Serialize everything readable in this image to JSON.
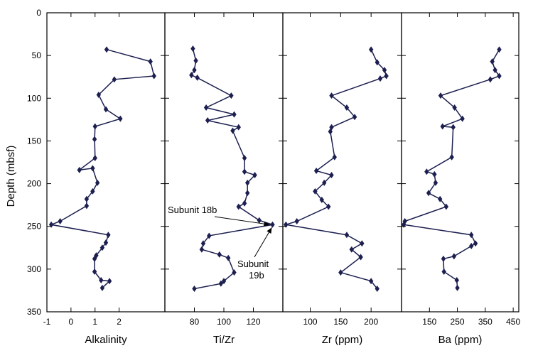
{
  "chart_data": {
    "type": "line",
    "depth_axis": {
      "label": "Depth (mbsf)",
      "range": [
        0,
        350
      ],
      "inverted": true,
      "ticks": [
        "0",
        "50",
        "100",
        "150",
        "200",
        "250",
        "300",
        "350"
      ]
    },
    "panels": [
      {
        "xlabel": "Alkalinity",
        "xlim": [
          -1,
          3.9
        ],
        "xticks": [
          -1,
          0,
          1,
          2
        ],
        "xtick_labels": [
          "-1",
          "0",
          "1",
          "2"
        ],
        "points": [
          {
            "x": 1.48,
            "depth": 43
          },
          {
            "x": 3.3,
            "depth": 57
          },
          {
            "x": 3.45,
            "depth": 74
          },
          {
            "x": 1.8,
            "depth": 78
          },
          {
            "x": 1.15,
            "depth": 96
          },
          {
            "x": 1.45,
            "depth": 113
          },
          {
            "x": 2.05,
            "depth": 124
          },
          {
            "x": 1.0,
            "depth": 133
          },
          {
            "x": 0.98,
            "depth": 148
          },
          {
            "x": 1.0,
            "depth": 170
          },
          {
            "x": 0.35,
            "depth": 184
          },
          {
            "x": 0.9,
            "depth": 182
          },
          {
            "x": 1.1,
            "depth": 199
          },
          {
            "x": 0.9,
            "depth": 209
          },
          {
            "x": 0.65,
            "depth": 218
          },
          {
            "x": 0.65,
            "depth": 226
          },
          {
            "x": -0.45,
            "depth": 244
          },
          {
            "x": -0.82,
            "depth": 248
          },
          {
            "x": 1.55,
            "depth": 260
          },
          {
            "x": 1.45,
            "depth": 269
          },
          {
            "x": 1.3,
            "depth": 275
          },
          {
            "x": 1.05,
            "depth": 284
          },
          {
            "x": 0.98,
            "depth": 288
          },
          {
            "x": 0.98,
            "depth": 303
          },
          {
            "x": 1.25,
            "depth": 313
          },
          {
            "x": 1.6,
            "depth": 314
          },
          {
            "x": 1.3,
            "depth": 322
          }
        ]
      },
      {
        "xlabel": "Ti/Zr",
        "xlim": [
          60,
          140
        ],
        "xticks": [
          80,
          100,
          120
        ],
        "xtick_labels": [
          "80",
          "100",
          "120"
        ],
        "points": [
          {
            "x": 79,
            "depth": 42
          },
          {
            "x": 81,
            "depth": 56
          },
          {
            "x": 80,
            "depth": 67
          },
          {
            "x": 78,
            "depth": 73
          },
          {
            "x": 82,
            "depth": 76
          },
          {
            "x": 105,
            "depth": 97
          },
          {
            "x": 88,
            "depth": 111
          },
          {
            "x": 107,
            "depth": 119
          },
          {
            "x": 89,
            "depth": 126
          },
          {
            "x": 110,
            "depth": 134
          },
          {
            "x": 106,
            "depth": 138
          },
          {
            "x": 114,
            "depth": 170
          },
          {
            "x": 114,
            "depth": 186
          },
          {
            "x": 121,
            "depth": 190
          },
          {
            "x": 116,
            "depth": 199
          },
          {
            "x": 116,
            "depth": 211
          },
          {
            "x": 114,
            "depth": 223
          },
          {
            "x": 110,
            "depth": 227
          },
          {
            "x": 124,
            "depth": 243
          },
          {
            "x": 133,
            "depth": 248
          },
          {
            "x": 90,
            "depth": 261
          },
          {
            "x": 86,
            "depth": 270
          },
          {
            "x": 85,
            "depth": 277
          },
          {
            "x": 97,
            "depth": 283
          },
          {
            "x": 103,
            "depth": 287
          },
          {
            "x": 107,
            "depth": 304
          },
          {
            "x": 100,
            "depth": 314
          },
          {
            "x": 98,
            "depth": 317
          },
          {
            "x": 80,
            "depth": 323
          }
        ]
      },
      {
        "xlabel": "Zr (ppm)",
        "xlim": [
          55,
          250
        ],
        "xticks": [
          100,
          150,
          200
        ],
        "xtick_labels": [
          "100",
          "150",
          "200"
        ],
        "points": [
          {
            "x": 200,
            "depth": 43
          },
          {
            "x": 210,
            "depth": 58
          },
          {
            "x": 222,
            "depth": 67
          },
          {
            "x": 225,
            "depth": 74
          },
          {
            "x": 215,
            "depth": 77
          },
          {
            "x": 135,
            "depth": 97
          },
          {
            "x": 160,
            "depth": 111
          },
          {
            "x": 173,
            "depth": 122
          },
          {
            "x": 135,
            "depth": 134
          },
          {
            "x": 133,
            "depth": 139
          },
          {
            "x": 140,
            "depth": 169
          },
          {
            "x": 110,
            "depth": 185
          },
          {
            "x": 135,
            "depth": 190
          },
          {
            "x": 123,
            "depth": 199
          },
          {
            "x": 108,
            "depth": 209
          },
          {
            "x": 119,
            "depth": 219
          },
          {
            "x": 130,
            "depth": 227
          },
          {
            "x": 78,
            "depth": 244
          },
          {
            "x": 60,
            "depth": 248
          },
          {
            "x": 160,
            "depth": 260
          },
          {
            "x": 185,
            "depth": 270
          },
          {
            "x": 168,
            "depth": 277
          },
          {
            "x": 183,
            "depth": 286
          },
          {
            "x": 150,
            "depth": 304
          },
          {
            "x": 200,
            "depth": 314
          },
          {
            "x": 210,
            "depth": 323
          }
        ]
      },
      {
        "xlabel": "Ba (ppm)",
        "xlim": [
          50,
          470
        ],
        "xticks": [
          150,
          250,
          350,
          450
        ],
        "xtick_labels": [
          "150",
          "250",
          "350",
          "450"
        ],
        "points": [
          {
            "x": 400,
            "depth": 43
          },
          {
            "x": 375,
            "depth": 57
          },
          {
            "x": 385,
            "depth": 67
          },
          {
            "x": 400,
            "depth": 74
          },
          {
            "x": 368,
            "depth": 78
          },
          {
            "x": 190,
            "depth": 97
          },
          {
            "x": 240,
            "depth": 111
          },
          {
            "x": 268,
            "depth": 124
          },
          {
            "x": 197,
            "depth": 133
          },
          {
            "x": 235,
            "depth": 134
          },
          {
            "x": 230,
            "depth": 169
          },
          {
            "x": 140,
            "depth": 186
          },
          {
            "x": 168,
            "depth": 189
          },
          {
            "x": 172,
            "depth": 199
          },
          {
            "x": 147,
            "depth": 211
          },
          {
            "x": 188,
            "depth": 218
          },
          {
            "x": 210,
            "depth": 227
          },
          {
            "x": 62,
            "depth": 244
          },
          {
            "x": 58,
            "depth": 248
          },
          {
            "x": 300,
            "depth": 260
          },
          {
            "x": 315,
            "depth": 270
          },
          {
            "x": 300,
            "depth": 273
          },
          {
            "x": 238,
            "depth": 285
          },
          {
            "x": 200,
            "depth": 288
          },
          {
            "x": 202,
            "depth": 303
          },
          {
            "x": 248,
            "depth": 313
          },
          {
            "x": 250,
            "depth": 322
          }
        ]
      }
    ],
    "annotations": [
      {
        "text": "Subunit 18b",
        "panel": 1,
        "point_depth": 248,
        "point_x": 133
      },
      {
        "text": "Subunit",
        "text2": "19b",
        "panel": 1,
        "point_depth": 248,
        "point_x": 133
      }
    ]
  }
}
